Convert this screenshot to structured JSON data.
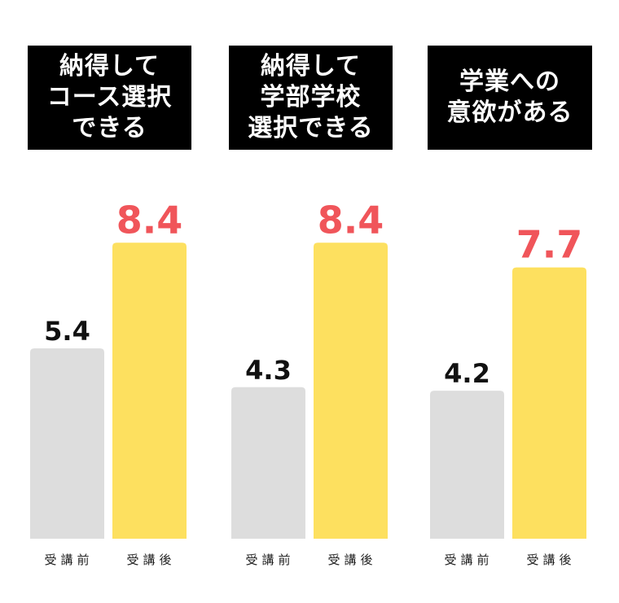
{
  "colors": {
    "before_bar": "#dddddd",
    "after_bar": "#fde05f",
    "before_value": "#111111",
    "after_value": "#f0555a",
    "title_bg": "#000000",
    "title_text": "#ffffff"
  },
  "chart_data": [
    {
      "type": "bar",
      "title": "納得して\nコース選択\nできる",
      "categories": [
        "受講前",
        "受講後"
      ],
      "values": [
        5.4,
        8.4
      ],
      "data_labels": [
        "5.4",
        "8.4"
      ],
      "xlabel": "",
      "ylabel": ""
    },
    {
      "type": "bar",
      "title": "納得して\n学部学校\n選択できる",
      "categories": [
        "受講前",
        "受講後"
      ],
      "values": [
        4.3,
        8.4
      ],
      "data_labels": [
        "4.3",
        "8.4"
      ],
      "xlabel": "",
      "ylabel": ""
    },
    {
      "type": "bar",
      "title": "学業への\n意欲がある",
      "categories": [
        "受講前",
        "受講後"
      ],
      "values": [
        4.2,
        7.7
      ],
      "data_labels": [
        "4.2",
        "7.7"
      ],
      "xlabel": "",
      "ylabel": ""
    }
  ]
}
